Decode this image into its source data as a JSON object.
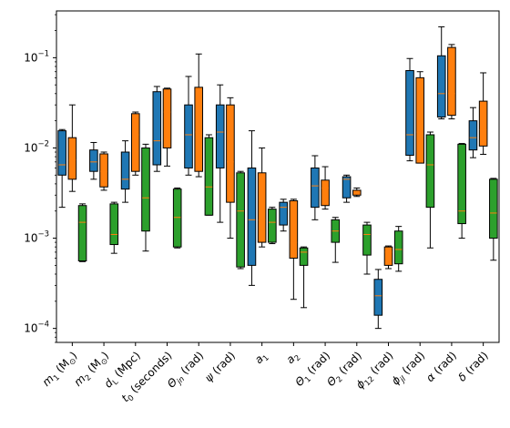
{
  "chart_data": {
    "type": "box",
    "y_scale": "log",
    "ylim": [
      7e-05,
      0.33
    ],
    "y_ticks": [
      {
        "value": 0.0001,
        "base": "10",
        "exp": "−4"
      },
      {
        "value": 0.001,
        "base": "10",
        "exp": "−3"
      },
      {
        "value": 0.01,
        "base": "10",
        "exp": "−2"
      },
      {
        "value": 0.1,
        "base": "10",
        "exp": "−1"
      }
    ],
    "categories": [
      {
        "label": "m",
        "sub": "1",
        "unit": " (M",
        "unitSub": "⊙",
        "close": ")"
      },
      {
        "label": "m",
        "sub": "2",
        "unit": " (M",
        "unitSub": "⊙",
        "close": ")"
      },
      {
        "label": "d",
        "sub": "L",
        "unit": " (Mpc)",
        "unitSub": "",
        "close": ""
      },
      {
        "label": "t",
        "sub": "0",
        "unit": " (seconds)",
        "unitSub": "",
        "close": ""
      },
      {
        "label": "Θ",
        "sub": "jn",
        "unit": " (rad)",
        "unitSub": "",
        "close": ""
      },
      {
        "label": "ψ",
        "sub": "",
        "unit": " (rad)",
        "unitSub": "",
        "close": ""
      },
      {
        "label": "a",
        "sub": "1",
        "unit": "",
        "unitSub": "",
        "close": ""
      },
      {
        "label": "a",
        "sub": "2",
        "unit": "",
        "unitSub": "",
        "close": ""
      },
      {
        "label": "Θ",
        "sub": "1",
        "unit": " (rad)",
        "unitSub": "",
        "close": ""
      },
      {
        "label": "Θ",
        "sub": "2",
        "unit": " (rad)",
        "unitSub": "",
        "close": ""
      },
      {
        "label": "ϕ",
        "sub": "12",
        "unit": " (rad)",
        "unitSub": "",
        "close": ""
      },
      {
        "label": "ϕ",
        "sub": "jl",
        "unit": " (rad)",
        "unitSub": "",
        "close": ""
      },
      {
        "label": "α",
        "sub": "",
        "unit": " (rad)",
        "unitSub": "",
        "close": ""
      },
      {
        "label": "δ",
        "sub": "",
        "unit": " (rad)",
        "unitSub": "",
        "close": ""
      }
    ],
    "series": [
      {
        "color": "#1f77b4",
        "boxes": [
          {
            "wlo": 0.0022,
            "q1": 0.005,
            "med": 0.0065,
            "q3": 0.0155,
            "whi": 0.016
          },
          {
            "wlo": 0.0045,
            "q1": 0.0055,
            "med": 0.007,
            "q3": 0.0095,
            "whi": 0.0115
          },
          {
            "wlo": 0.0025,
            "q1": 0.0035,
            "med": 0.0045,
            "q3": 0.009,
            "whi": 0.012
          },
          {
            "wlo": 0.0055,
            "q1": 0.0065,
            "med": 0.012,
            "q3": 0.042,
            "whi": 0.048
          },
          {
            "wlo": 0.005,
            "q1": 0.006,
            "med": 0.014,
            "q3": 0.03,
            "whi": 0.062
          },
          {
            "wlo": 0.0015,
            "q1": 0.006,
            "med": 0.015,
            "q3": 0.03,
            "whi": 0.05
          },
          {
            "wlo": 0.0003,
            "q1": 0.0005,
            "med": 0.0016,
            "q3": 0.006,
            "whi": 0.0155
          },
          {
            "wlo": 0.0012,
            "q1": 0.0014,
            "med": 0.0022,
            "q3": 0.0025,
            "whi": 0.0027
          },
          {
            "wlo": 0.0016,
            "q1": 0.0022,
            "med": 0.0038,
            "q3": 0.006,
            "whi": 0.0082
          },
          {
            "wlo": 0.0025,
            "q1": 0.0028,
            "med": 0.0045,
            "q3": 0.0048,
            "whi": 0.005
          },
          {
            "wlo": 0.0001,
            "q1": 0.00014,
            "med": 0.00023,
            "q3": 0.00035,
            "whi": 0.00045
          },
          {
            "wlo": 0.0072,
            "q1": 0.0083,
            "med": 0.014,
            "q3": 0.072,
            "whi": 0.098
          },
          {
            "wlo": 0.021,
            "q1": 0.022,
            "med": 0.04,
            "q3": 0.105,
            "whi": 0.22
          },
          {
            "wlo": 0.0078,
            "q1": 0.0095,
            "med": 0.013,
            "q3": 0.02,
            "whi": 0.028
          }
        ]
      },
      {
        "color": "#ff7f0e",
        "boxes": [
          {
            "wlo": 0.0033,
            "q1": 0.0045,
            "med": 0.0074,
            "q3": 0.013,
            "whi": 0.03
          },
          {
            "wlo": 0.0034,
            "q1": 0.0037,
            "med": 0.0055,
            "q3": 0.0086,
            "whi": 0.009
          },
          {
            "wlo": 0.005,
            "q1": 0.0055,
            "med": 0.014,
            "q3": 0.024,
            "whi": 0.025
          },
          {
            "wlo": 0.0063,
            "q1": 0.01,
            "med": 0.025,
            "q3": 0.045,
            "whi": 0.046
          },
          {
            "wlo": 0.0048,
            "q1": 0.0055,
            "med": 0.015,
            "q3": 0.047,
            "whi": 0.11
          },
          {
            "wlo": 0.001,
            "q1": 0.0025,
            "med": 0.007,
            "q3": 0.03,
            "whi": 0.036
          },
          {
            "wlo": 0.0008,
            "q1": 0.0009,
            "med": 0.0016,
            "q3": 0.0053,
            "whi": 0.01
          },
          {
            "wlo": 0.00021,
            "q1": 0.0006,
            "med": 0.0009,
            "q3": 0.0026,
            "whi": 0.0027
          },
          {
            "wlo": 0.0021,
            "q1": 0.0023,
            "med": 0.0036,
            "q3": 0.0044,
            "whi": 0.0062
          },
          {
            "wlo": 0.0029,
            "q1": 0.003,
            "med": 0.0032,
            "q3": 0.0034,
            "whi": 0.0036
          },
          {
            "wlo": 0.00046,
            "q1": 0.0005,
            "med": 0.0007,
            "q3": 0.0008,
            "whi": 0.00082
          },
          {
            "wlo": 0.0068,
            "q1": 0.0068,
            "med": 0.015,
            "q3": 0.06,
            "whi": 0.07
          },
          {
            "wlo": 0.021,
            "q1": 0.023,
            "med": 0.04,
            "q3": 0.13,
            "whi": 0.14
          },
          {
            "wlo": 0.0085,
            "q1": 0.0105,
            "med": 0.016,
            "q3": 0.033,
            "whi": 0.068
          }
        ]
      },
      {
        "color": "#2ca02c",
        "boxes": [
          {
            "wlo": 0.00055,
            "q1": 0.00056,
            "med": 0.0015,
            "q3": 0.0023,
            "whi": 0.0024
          },
          {
            "wlo": 0.00068,
            "q1": 0.00085,
            "med": 0.0011,
            "q3": 0.0024,
            "whi": 0.0025
          },
          {
            "wlo": 0.00072,
            "q1": 0.0012,
            "med": 0.0028,
            "q3": 0.01,
            "whi": 0.011
          },
          {
            "wlo": 0.00078,
            "q1": 0.0008,
            "med": 0.0017,
            "q3": 0.0035,
            "whi": 0.0036
          },
          {
            "wlo": 0.0018,
            "q1": 0.0018,
            "med": 0.0037,
            "q3": 0.013,
            "whi": 0.014
          },
          {
            "wlo": 0.00046,
            "q1": 0.00048,
            "med": 0.002,
            "q3": 0.0053,
            "whi": 0.0055
          },
          {
            "wlo": 0.00087,
            "q1": 0.0009,
            "med": 0.0015,
            "q3": 0.0021,
            "whi": 0.0022
          },
          {
            "wlo": 0.00017,
            "q1": 0.0005,
            "med": 0.0007,
            "q3": 0.00078,
            "whi": 0.0008
          },
          {
            "wlo": 0.00054,
            "q1": 0.0009,
            "med": 0.0012,
            "q3": 0.0016,
            "whi": 0.0017
          },
          {
            "wlo": 0.0004,
            "q1": 0.00065,
            "med": 0.0011,
            "q3": 0.0014,
            "whi": 0.0015
          },
          {
            "wlo": 0.00043,
            "q1": 0.00052,
            "med": 0.00075,
            "q3": 0.0012,
            "whi": 0.00135
          },
          {
            "wlo": 0.00078,
            "q1": 0.0022,
            "med": 0.0065,
            "q3": 0.014,
            "whi": 0.015
          },
          {
            "wlo": 0.001,
            "q1": 0.00145,
            "med": 0.002,
            "q3": 0.011,
            "whi": 0.0112
          },
          {
            "wlo": 0.00057,
            "q1": 0.001,
            "med": 0.0019,
            "q3": 0.0045,
            "whi": 0.0046
          }
        ]
      }
    ],
    "grid": false,
    "legend": "none"
  }
}
